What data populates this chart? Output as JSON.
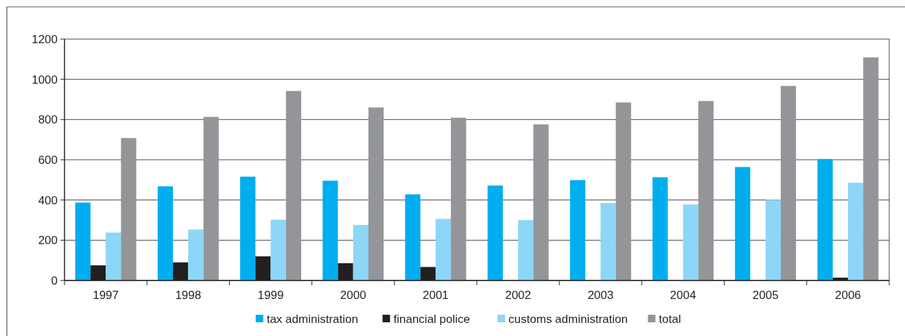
{
  "chart_data": {
    "type": "bar",
    "categories": [
      "1997",
      "1998",
      "1999",
      "2000",
      "2001",
      "2002",
      "2003",
      "2004",
      "2005",
      "2006"
    ],
    "series": [
      {
        "name": "tax administration",
        "color": "#00adef",
        "values": [
          387,
          468,
          516,
          496,
          428,
          472,
          499,
          513,
          564,
          604
        ]
      },
      {
        "name": "financial police",
        "color": "#231f20",
        "values": [
          75,
          90,
          120,
          86,
          67,
          null,
          null,
          null,
          null,
          14
        ]
      },
      {
        "name": "customs administration",
        "color": "#8dd6f7",
        "values": [
          238,
          253,
          302,
          276,
          306,
          300,
          385,
          378,
          401,
          486
        ]
      },
      {
        "name": "total",
        "color": "#939598",
        "values": [
          708,
          813,
          942,
          860,
          809,
          776,
          885,
          892,
          967,
          1109
        ]
      }
    ],
    "ylim": [
      0,
      1200
    ],
    "yticks": [
      0,
      200,
      400,
      600,
      800,
      1000,
      1200
    ],
    "grid": "y",
    "legend": "bottom"
  }
}
